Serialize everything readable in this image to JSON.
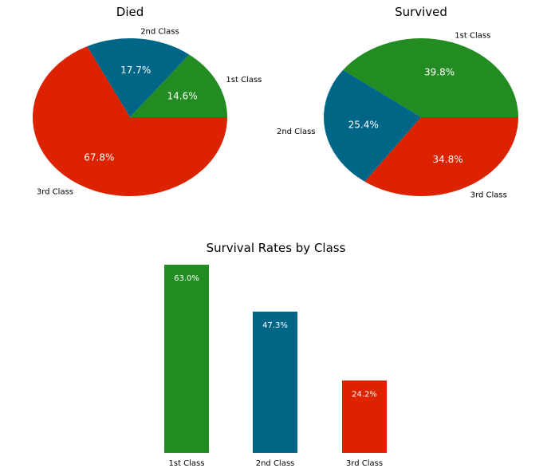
{
  "chart_data": [
    {
      "type": "pie",
      "title": "Died",
      "categories": [
        "1st Class",
        "2nd Class",
        "3rd Class"
      ],
      "values": [
        14.6,
        17.7,
        67.8
      ],
      "value_labels": [
        "14.6%",
        "17.7%",
        "67.8%"
      ],
      "colors": [
        "#228B22",
        "#006688",
        "#DD2200"
      ],
      "start_angle_deg": 0,
      "direction": "counterclockwise"
    },
    {
      "type": "pie",
      "title": "Survived",
      "categories": [
        "1st Class",
        "2nd Class",
        "3rd Class"
      ],
      "values": [
        39.8,
        25.4,
        34.8
      ],
      "value_labels": [
        "39.8%",
        "25.4%",
        "34.8%"
      ],
      "colors": [
        "#228B22",
        "#006688",
        "#DD2200"
      ],
      "start_angle_deg": 0,
      "direction": "counterclockwise"
    },
    {
      "type": "bar",
      "title": "Survival Rates by Class",
      "categories": [
        "1st Class",
        "2nd Class",
        "3rd Class"
      ],
      "values": [
        63.0,
        47.3,
        24.2
      ],
      "value_labels": [
        "63.0%",
        "47.3%",
        "24.2%"
      ],
      "colors": [
        "#228B22",
        "#006688",
        "#DD2200"
      ],
      "ylim": [
        0,
        63.0
      ],
      "grid": false,
      "axes_visible": false
    }
  ]
}
